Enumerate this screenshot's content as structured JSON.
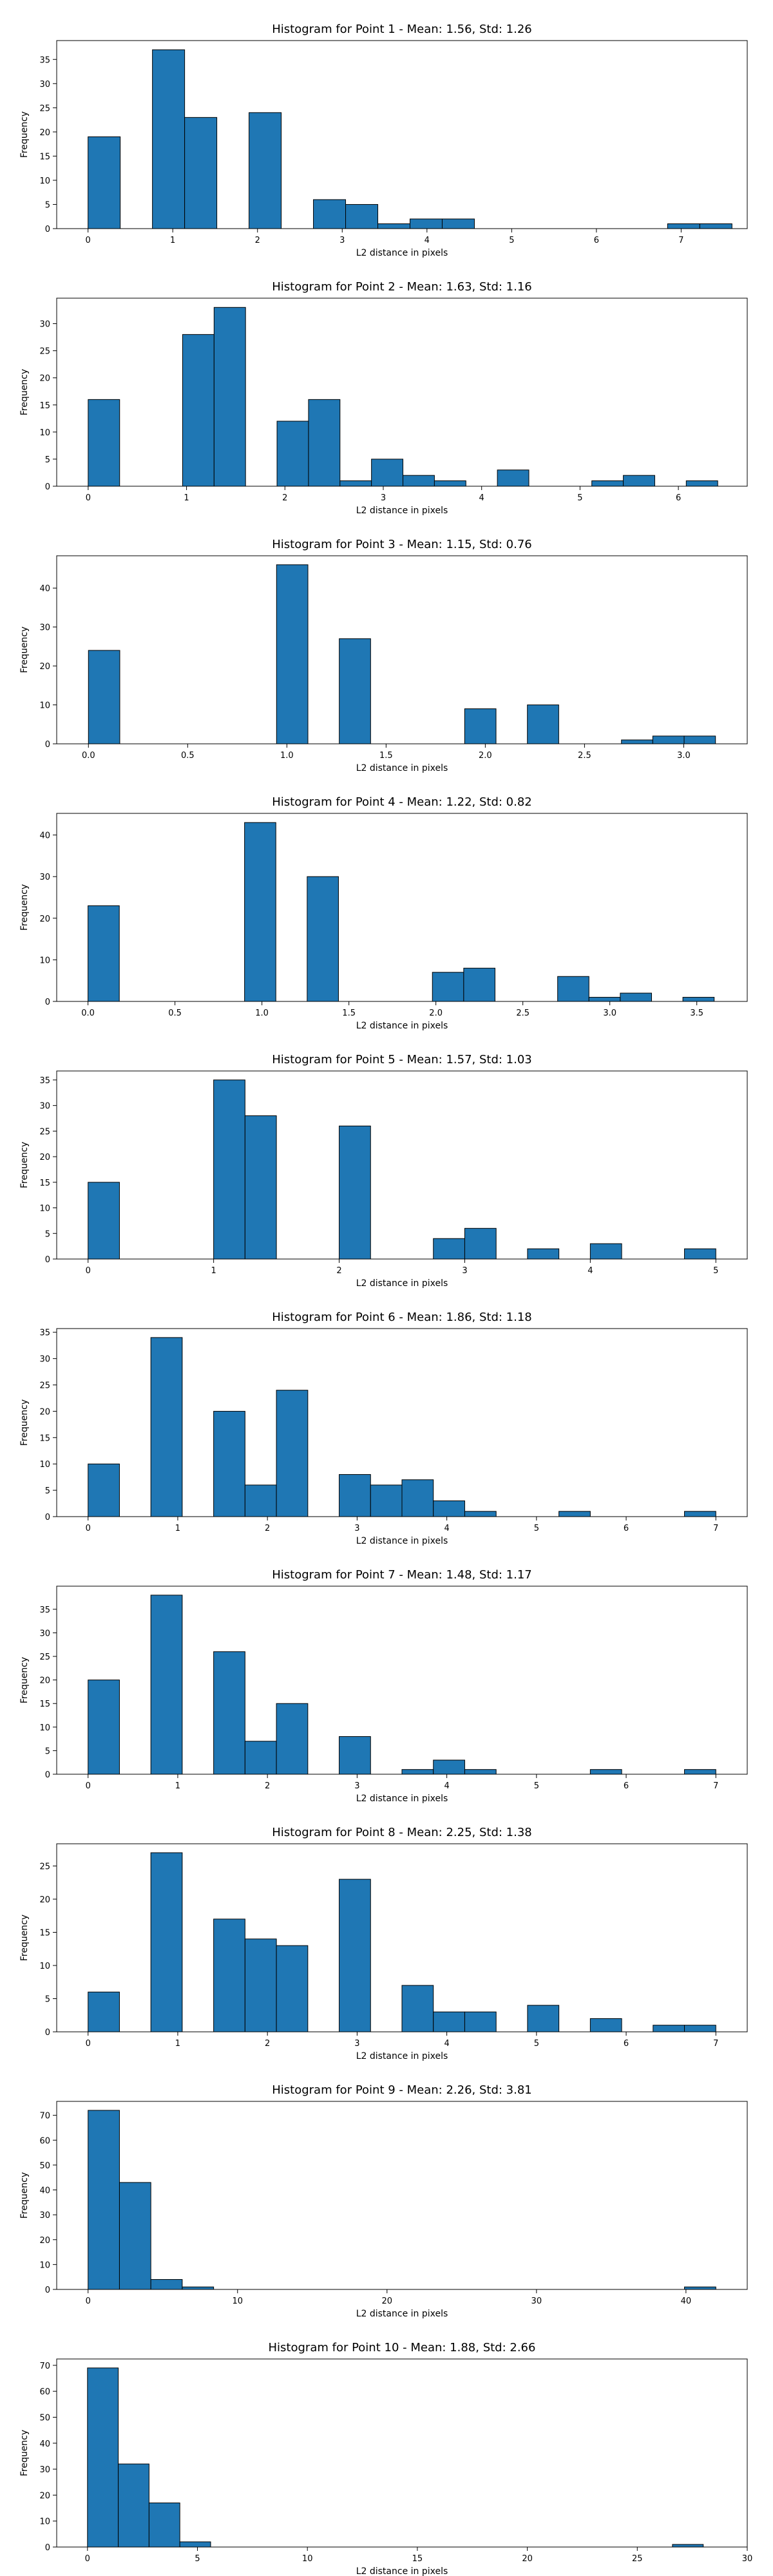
{
  "figure": {
    "background": "#ffffff",
    "bar_color": "#1f77b4",
    "edge_color": "#000000"
  },
  "chart_data": [
    {
      "type": "bar",
      "title": "Histogram for Point 1 - Mean: 1.56, Std: 1.26",
      "xlabel": "L2 distance in pixels",
      "ylabel": "Frequency",
      "xlim": [
        -0.37,
        7.78
      ],
      "ylim": [
        0,
        38.9
      ],
      "xticks": [
        0,
        1,
        2,
        3,
        4,
        5,
        6,
        7
      ],
      "xtick_labels": [
        "0",
        "1",
        "2",
        "3",
        "4",
        "5",
        "6",
        "7"
      ],
      "yticks": [
        0,
        5,
        10,
        15,
        20,
        25,
        30,
        35
      ],
      "ytick_labels": [
        "0",
        "5",
        "10",
        "15",
        "20",
        "25",
        "30",
        "35"
      ],
      "bins": [
        {
          "x0": 0.0,
          "x1": 0.38,
          "value": 19
        },
        {
          "x0": 0.76,
          "x1": 1.14,
          "value": 37
        },
        {
          "x0": 1.14,
          "x1": 1.52,
          "value": 23
        },
        {
          "x0": 1.9,
          "x1": 2.28,
          "value": 24
        },
        {
          "x0": 2.66,
          "x1": 3.04,
          "value": 6
        },
        {
          "x0": 3.04,
          "x1": 3.42,
          "value": 5
        },
        {
          "x0": 3.42,
          "x1": 3.8,
          "value": 1
        },
        {
          "x0": 3.8,
          "x1": 4.18,
          "value": 2
        },
        {
          "x0": 4.18,
          "x1": 4.56,
          "value": 2
        },
        {
          "x0": 6.84,
          "x1": 7.22,
          "value": 1
        },
        {
          "x0": 7.22,
          "x1": 7.6,
          "value": 1
        }
      ]
    },
    {
      "type": "bar",
      "title": "Histogram for Point 2 - Mean: 1.63, Std: 1.16",
      "xlabel": "L2 distance in pixels",
      "ylabel": "Frequency",
      "xlim": [
        -0.32,
        6.7
      ],
      "ylim": [
        0,
        34.7
      ],
      "xticks": [
        0,
        1,
        2,
        3,
        4,
        5,
        6
      ],
      "xtick_labels": [
        "0",
        "1",
        "2",
        "3",
        "4",
        "5",
        "6"
      ],
      "yticks": [
        0,
        5,
        10,
        15,
        20,
        25,
        30
      ],
      "ytick_labels": [
        "0",
        "5",
        "10",
        "15",
        "20",
        "25",
        "30"
      ],
      "bins": [
        {
          "x0": 0.0,
          "x1": 0.32,
          "value": 16
        },
        {
          "x0": 0.96,
          "x1": 1.28,
          "value": 28
        },
        {
          "x0": 1.28,
          "x1": 1.6,
          "value": 33
        },
        {
          "x0": 1.92,
          "x1": 2.24,
          "value": 12
        },
        {
          "x0": 2.24,
          "x1": 2.56,
          "value": 16
        },
        {
          "x0": 2.56,
          "x1": 2.88,
          "value": 1
        },
        {
          "x0": 2.88,
          "x1": 3.2,
          "value": 5
        },
        {
          "x0": 3.2,
          "x1": 3.52,
          "value": 2
        },
        {
          "x0": 3.52,
          "x1": 3.84,
          "value": 1
        },
        {
          "x0": 4.16,
          "x1": 4.48,
          "value": 3
        },
        {
          "x0": 5.12,
          "x1": 5.44,
          "value": 1
        },
        {
          "x0": 5.44,
          "x1": 5.76,
          "value": 2
        },
        {
          "x0": 6.08,
          "x1": 6.4,
          "value": 1
        }
      ]
    },
    {
      "type": "bar",
      "title": "Histogram for Point 3 - Mean: 1.15, Std: 0.76",
      "xlabel": "L2 distance in pixels",
      "ylabel": "Frequency",
      "xlim": [
        -0.16,
        3.32
      ],
      "ylim": [
        0,
        48.3
      ],
      "xticks": [
        0,
        0.5,
        1,
        1.5,
        2,
        2.5,
        3
      ],
      "xtick_labels": [
        "0.0",
        "0.5",
        "1.0",
        "1.5",
        "2.0",
        "2.5",
        "3.0"
      ],
      "yticks": [
        0,
        10,
        20,
        30,
        40
      ],
      "ytick_labels": [
        "0",
        "10",
        "20",
        "30",
        "40"
      ],
      "bins": [
        {
          "x0": 0.0,
          "x1": 0.158,
          "value": 24
        },
        {
          "x0": 0.948,
          "x1": 1.106,
          "value": 46
        },
        {
          "x0": 1.264,
          "x1": 1.422,
          "value": 27
        },
        {
          "x0": 1.896,
          "x1": 2.054,
          "value": 9
        },
        {
          "x0": 2.212,
          "x1": 2.37,
          "value": 10
        },
        {
          "x0": 2.686,
          "x1": 2.844,
          "value": 1
        },
        {
          "x0": 2.844,
          "x1": 3.002,
          "value": 2
        },
        {
          "x0": 3.002,
          "x1": 3.16,
          "value": 2
        }
      ]
    },
    {
      "type": "bar",
      "title": "Histogram for Point 4 - Mean: 1.22, Std: 0.82",
      "xlabel": "L2 distance in pixels",
      "ylabel": "Frequency",
      "xlim": [
        -0.18,
        3.79
      ],
      "ylim": [
        0,
        45.2
      ],
      "xticks": [
        0,
        0.5,
        1,
        1.5,
        2,
        2.5,
        3,
        3.5
      ],
      "xtick_labels": [
        "0.0",
        "0.5",
        "1.0",
        "1.5",
        "2.0",
        "2.5",
        "3.0",
        "3.5"
      ],
      "yticks": [
        0,
        10,
        20,
        30,
        40
      ],
      "ytick_labels": [
        "0",
        "10",
        "20",
        "30",
        "40"
      ],
      "bins": [
        {
          "x0": 0.0,
          "x1": 0.18,
          "value": 23
        },
        {
          "x0": 0.9,
          "x1": 1.08,
          "value": 43
        },
        {
          "x0": 1.26,
          "x1": 1.44,
          "value": 30
        },
        {
          "x0": 1.98,
          "x1": 2.16,
          "value": 7
        },
        {
          "x0": 2.16,
          "x1": 2.34,
          "value": 8
        },
        {
          "x0": 2.7,
          "x1": 2.88,
          "value": 6
        },
        {
          "x0": 2.88,
          "x1": 3.06,
          "value": 1
        },
        {
          "x0": 3.06,
          "x1": 3.24,
          "value": 2
        },
        {
          "x0": 3.42,
          "x1": 3.6,
          "value": 1
        }
      ]
    },
    {
      "type": "bar",
      "title": "Histogram for Point 5 - Mean: 1.57, Std: 1.03",
      "xlabel": "L2 distance in pixels",
      "ylabel": "Frequency",
      "xlim": [
        -0.25,
        5.25
      ],
      "ylim": [
        0,
        36.75
      ],
      "xticks": [
        0,
        1,
        2,
        3,
        4,
        5
      ],
      "xtick_labels": [
        "0",
        "1",
        "2",
        "3",
        "4",
        "5"
      ],
      "yticks": [
        0,
        5,
        10,
        15,
        20,
        25,
        30,
        35
      ],
      "ytick_labels": [
        "0",
        "5",
        "10",
        "15",
        "20",
        "25",
        "30",
        "35"
      ],
      "bins": [
        {
          "x0": 0.0,
          "x1": 0.25,
          "value": 15
        },
        {
          "x0": 1.0,
          "x1": 1.25,
          "value": 35
        },
        {
          "x0": 1.25,
          "x1": 1.5,
          "value": 28
        },
        {
          "x0": 2.0,
          "x1": 2.25,
          "value": 26
        },
        {
          "x0": 2.75,
          "x1": 3.0,
          "value": 4
        },
        {
          "x0": 3.0,
          "x1": 3.25,
          "value": 6
        },
        {
          "x0": 3.5,
          "x1": 3.75,
          "value": 2
        },
        {
          "x0": 4.0,
          "x1": 4.25,
          "value": 3
        },
        {
          "x0": 4.75,
          "x1": 5.0,
          "value": 2
        }
      ]
    },
    {
      "type": "bar",
      "title": "Histogram for Point 6 - Mean: 1.86, Std: 1.18",
      "xlabel": "L2 distance in pixels",
      "ylabel": "Frequency",
      "xlim": [
        -0.35,
        7.35
      ],
      "ylim": [
        0,
        35.7
      ],
      "xticks": [
        0,
        1,
        2,
        3,
        4,
        5,
        6,
        7
      ],
      "xtick_labels": [
        "0",
        "1",
        "2",
        "3",
        "4",
        "5",
        "6",
        "7"
      ],
      "yticks": [
        0,
        5,
        10,
        15,
        20,
        25,
        30,
        35
      ],
      "ytick_labels": [
        "0",
        "5",
        "10",
        "15",
        "20",
        "25",
        "30",
        "35"
      ],
      "bins": [
        {
          "x0": 0.0,
          "x1": 0.35,
          "value": 10
        },
        {
          "x0": 0.7,
          "x1": 1.05,
          "value": 34
        },
        {
          "x0": 1.4,
          "x1": 1.75,
          "value": 20
        },
        {
          "x0": 1.75,
          "x1": 2.1,
          "value": 6
        },
        {
          "x0": 2.1,
          "x1": 2.45,
          "value": 24
        },
        {
          "x0": 2.8,
          "x1": 3.15,
          "value": 8
        },
        {
          "x0": 3.15,
          "x1": 3.5,
          "value": 6
        },
        {
          "x0": 3.5,
          "x1": 3.85,
          "value": 7
        },
        {
          "x0": 3.85,
          "x1": 4.2,
          "value": 3
        },
        {
          "x0": 4.2,
          "x1": 4.55,
          "value": 1
        },
        {
          "x0": 5.25,
          "x1": 5.6,
          "value": 1
        },
        {
          "x0": 6.65,
          "x1": 7.0,
          "value": 1
        }
      ]
    },
    {
      "type": "bar",
      "title": "Histogram for Point 7 - Mean: 1.48, Std: 1.17",
      "xlabel": "L2 distance in pixels",
      "ylabel": "Frequency",
      "xlim": [
        -0.35,
        7.35
      ],
      "ylim": [
        0,
        39.9
      ],
      "xticks": [
        0,
        1,
        2,
        3,
        4,
        5,
        6,
        7
      ],
      "xtick_labels": [
        "0",
        "1",
        "2",
        "3",
        "4",
        "5",
        "6",
        "7"
      ],
      "yticks": [
        0,
        5,
        10,
        15,
        20,
        25,
        30,
        35
      ],
      "ytick_labels": [
        "0",
        "5",
        "10",
        "15",
        "20",
        "25",
        "30",
        "35"
      ],
      "bins": [
        {
          "x0": 0.0,
          "x1": 0.35,
          "value": 20
        },
        {
          "x0": 0.7,
          "x1": 1.05,
          "value": 38
        },
        {
          "x0": 1.4,
          "x1": 1.75,
          "value": 26
        },
        {
          "x0": 1.75,
          "x1": 2.1,
          "value": 7
        },
        {
          "x0": 2.1,
          "x1": 2.45,
          "value": 15
        },
        {
          "x0": 2.8,
          "x1": 3.15,
          "value": 8
        },
        {
          "x0": 3.5,
          "x1": 3.85,
          "value": 1
        },
        {
          "x0": 3.85,
          "x1": 4.2,
          "value": 3
        },
        {
          "x0": 4.2,
          "x1": 4.55,
          "value": 1
        },
        {
          "x0": 5.6,
          "x1": 5.95,
          "value": 1
        },
        {
          "x0": 6.65,
          "x1": 7.0,
          "value": 1
        }
      ]
    },
    {
      "type": "bar",
      "title": "Histogram for Point 8 - Mean: 2.25, Std: 1.38",
      "xlabel": "L2 distance in pixels",
      "ylabel": "Frequency",
      "xlim": [
        -0.35,
        7.35
      ],
      "ylim": [
        0,
        28.35
      ],
      "xticks": [
        0,
        1,
        2,
        3,
        4,
        5,
        6,
        7
      ],
      "xtick_labels": [
        "0",
        "1",
        "2",
        "3",
        "4",
        "5",
        "6",
        "7"
      ],
      "yticks": [
        0,
        5,
        10,
        15,
        20,
        25
      ],
      "ytick_labels": [
        "0",
        "5",
        "10",
        "15",
        "20",
        "25"
      ],
      "bins": [
        {
          "x0": 0.0,
          "x1": 0.35,
          "value": 6
        },
        {
          "x0": 0.7,
          "x1": 1.05,
          "value": 27
        },
        {
          "x0": 1.4,
          "x1": 1.75,
          "value": 17
        },
        {
          "x0": 1.75,
          "x1": 2.1,
          "value": 14
        },
        {
          "x0": 2.1,
          "x1": 2.45,
          "value": 13
        },
        {
          "x0": 2.8,
          "x1": 3.15,
          "value": 23
        },
        {
          "x0": 3.5,
          "x1": 3.85,
          "value": 7
        },
        {
          "x0": 3.85,
          "x1": 4.2,
          "value": 3
        },
        {
          "x0": 4.2,
          "x1": 4.55,
          "value": 3
        },
        {
          "x0": 4.9,
          "x1": 5.25,
          "value": 4
        },
        {
          "x0": 5.6,
          "x1": 5.95,
          "value": 2
        },
        {
          "x0": 6.3,
          "x1": 6.65,
          "value": 1
        },
        {
          "x0": 6.65,
          "x1": 7.0,
          "value": 1
        }
      ]
    },
    {
      "type": "bar",
      "title": "Histogram for Point 9 - Mean: 2.26, Std: 3.81",
      "xlabel": "L2 distance in pixels",
      "ylabel": "Frequency",
      "xlim": [
        -2.1,
        44.1
      ],
      "ylim": [
        0,
        75.6
      ],
      "xticks": [
        0,
        10,
        20,
        30,
        40
      ],
      "xtick_labels": [
        "0",
        "10",
        "20",
        "30",
        "40"
      ],
      "yticks": [
        0,
        10,
        20,
        30,
        40,
        50,
        60,
        70
      ],
      "ytick_labels": [
        "0",
        "10",
        "20",
        "30",
        "40",
        "50",
        "60",
        "70"
      ],
      "bins": [
        {
          "x0": 0.0,
          "x1": 2.1,
          "value": 72
        },
        {
          "x0": 2.1,
          "x1": 4.2,
          "value": 43
        },
        {
          "x0": 4.2,
          "x1": 6.3,
          "value": 4
        },
        {
          "x0": 6.3,
          "x1": 8.4,
          "value": 1
        },
        {
          "x0": 39.9,
          "x1": 42.0,
          "value": 1
        }
      ]
    },
    {
      "type": "bar",
      "title": "Histogram for Point 10 - Mean: 1.88, Std: 2.66",
      "xlabel": "L2 distance in pixels",
      "ylabel": "Frequency",
      "xlim": [
        -1.4,
        30.0
      ],
      "ylim": [
        0,
        72.45
      ],
      "xticks": [
        0,
        5,
        10,
        15,
        20,
        25,
        30
      ],
      "xtick_labels": [
        "0",
        "5",
        "10",
        "15",
        "20",
        "25",
        "30"
      ],
      "yticks": [
        0,
        10,
        20,
        30,
        40,
        50,
        60,
        70
      ],
      "ytick_labels": [
        "0",
        "10",
        "20",
        "30",
        "40",
        "50",
        "60",
        "70"
      ],
      "bins": [
        {
          "x0": 0.0,
          "x1": 1.4,
          "value": 69
        },
        {
          "x0": 1.4,
          "x1": 2.8,
          "value": 32
        },
        {
          "x0": 2.8,
          "x1": 4.2,
          "value": 17
        },
        {
          "x0": 4.2,
          "x1": 5.6,
          "value": 2
        },
        {
          "x0": 26.6,
          "x1": 28.0,
          "value": 1
        }
      ]
    }
  ]
}
